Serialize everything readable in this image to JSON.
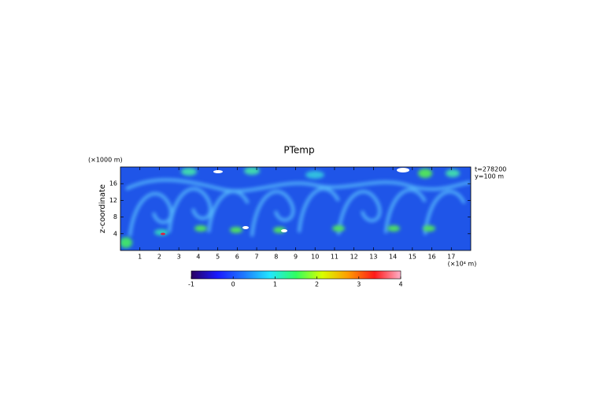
{
  "chart_data": {
    "type": "heatmap",
    "title": "PTemp",
    "x_unit_label": "(×10⁴ m)",
    "y_unit_label": "(×1000 m)",
    "y_label": "z-coordinate",
    "annotations": [
      "t=278200",
      "y=100 m"
    ],
    "xlim": [
      0,
      18
    ],
    "xticks": [
      1,
      2,
      3,
      4,
      5,
      6,
      7,
      8,
      9,
      10,
      11,
      12,
      13,
      14,
      15,
      16,
      17
    ],
    "ylim": [
      0,
      20
    ],
    "yticks": [
      4,
      8,
      12,
      16
    ],
    "colorbar": {
      "lim": [
        -1,
        4
      ],
      "ticks": [
        -1,
        0,
        1,
        2,
        3,
        4
      ],
      "colors": [
        "#2a0060",
        "#1a1aff",
        "#1e78ff",
        "#22e6ff",
        "#30ff60",
        "#d8ff00",
        "#ff9a00",
        "#ff1a1a",
        "#ffb0c8"
      ]
    }
  }
}
